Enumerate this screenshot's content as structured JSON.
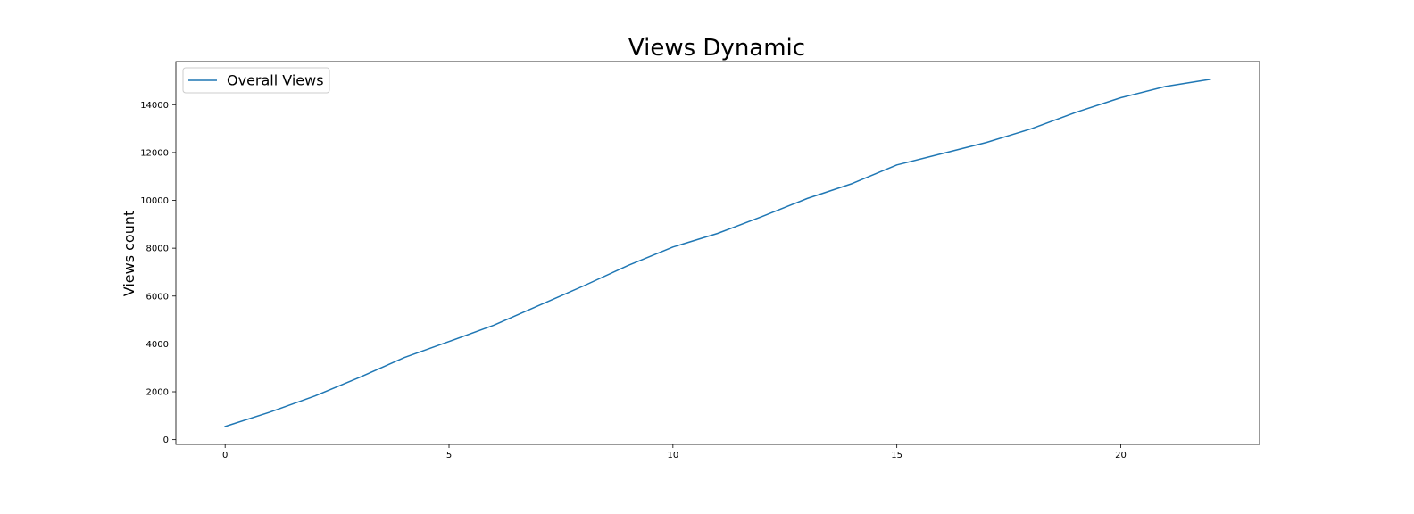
{
  "chart_data": {
    "type": "line",
    "title": "Views Dynamic",
    "xlabel": "",
    "ylabel": "Views count",
    "x": [
      0,
      1,
      2,
      3,
      4,
      5,
      6,
      7,
      8,
      9,
      10,
      11,
      12,
      13,
      14,
      15,
      16,
      17,
      18,
      19,
      20,
      21,
      22
    ],
    "series": [
      {
        "name": "Overall Views",
        "color": "#1f77b4",
        "values": [
          550,
          1150,
          1820,
          2600,
          3430,
          4100,
          4780,
          5600,
          6420,
          7280,
          8050,
          8620,
          9330,
          10080,
          10700,
          11480,
          11950,
          12420,
          12990,
          13680,
          14290,
          14760,
          15060
        ]
      }
    ],
    "xlim": [
      -1.1,
      23.1
    ],
    "ylim": [
      -200,
      15800
    ],
    "xticks": [
      0,
      5,
      10,
      15,
      20
    ],
    "yticks": [
      0,
      2000,
      4000,
      6000,
      8000,
      10000,
      12000,
      14000
    ],
    "grid": false,
    "legend_position": "upper-left"
  }
}
